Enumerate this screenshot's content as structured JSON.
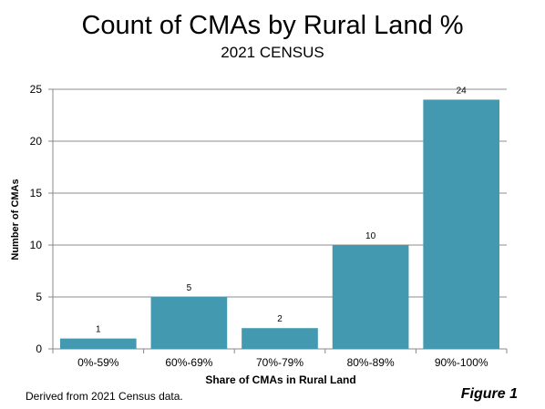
{
  "chart_data": {
    "type": "bar",
    "title": "Count of CMAs by Rural Land %",
    "subtitle": "2021 CENSUS",
    "categories": [
      "0%-59%",
      "60%-69%",
      "70%-79%",
      "80%-89%",
      "90%-100%"
    ],
    "values": [
      1,
      5,
      2,
      10,
      24
    ],
    "data_labels": [
      "1",
      "5",
      "2",
      "10",
      "24"
    ],
    "xlabel": "Share of CMAs in Rural Land",
    "ylabel": "Number of CMAs",
    "ylim": [
      0,
      25
    ],
    "yticks": [
      0,
      5,
      10,
      15,
      20,
      25
    ],
    "ytick_labels": [
      "0",
      "5",
      "10",
      "15",
      "20",
      "25"
    ],
    "grid": true,
    "legend": "none",
    "bar_color": "#4399B0"
  },
  "footnote": "Derived from 2021 Census data.",
  "figure_label": "Figure 1"
}
